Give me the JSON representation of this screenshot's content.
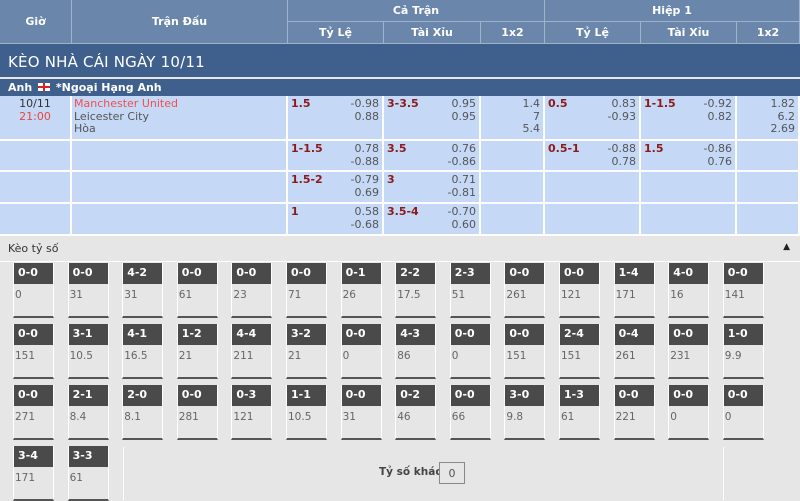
{
  "header": {
    "gio": "Giờ",
    "tran_dau": "Trận Đấu",
    "ca_tran": "Cả Trận",
    "hiep1": "Hiệp 1",
    "ty_le": "Tỷ Lệ",
    "tai_xiu": "Tài Xỉu",
    "x12": "1x2"
  },
  "title": "KÈO NHÀ CÁI NGÀY 10/11",
  "league": {
    "country": "Anh",
    "name": "*Ngoại Hạng Anh"
  },
  "match": {
    "date": "10/11",
    "time": "21:00",
    "home": "Manchester United",
    "away": "Leicester City",
    "draw": "Hòa"
  },
  "rows": [
    {
      "ft_hdp": "1.5",
      "ft_hdp_o": [
        "-0.98",
        "0.88"
      ],
      "ft_ou": "3-3.5",
      "ft_ou_o": [
        "0.95",
        "0.95"
      ],
      "ft_1x2": [
        "1.4",
        "7",
        "5.4"
      ],
      "h1_hdp": "0.5",
      "h1_hdp_o": [
        "0.83",
        "-0.93"
      ],
      "h1_ou": "1-1.5",
      "h1_ou_o": [
        "-0.92",
        "0.82"
      ],
      "h1_1x2": [
        "1.82",
        "6.2",
        "2.69"
      ]
    },
    {
      "ft_hdp": "1-1.5",
      "ft_hdp_o": [
        "0.78",
        "-0.88"
      ],
      "ft_ou": "3.5",
      "ft_ou_o": [
        "0.76",
        "-0.86"
      ],
      "h1_hdp": "0.5-1",
      "h1_hdp_o": [
        "-0.88",
        "0.78"
      ],
      "h1_ou": "1.5",
      "h1_ou_o": [
        "-0.86",
        "0.76"
      ]
    },
    {
      "ft_hdp": "1.5-2",
      "ft_hdp_o": [
        "-0.79",
        "0.69"
      ],
      "ft_ou": "3",
      "ft_ou_o": [
        "0.71",
        "-0.81"
      ]
    },
    {
      "ft_hdp": "1",
      "ft_hdp_o": [
        "0.58",
        "-0.68"
      ],
      "ft_ou": "3.5-4",
      "ft_ou_o": [
        "-0.70",
        "0.60"
      ]
    }
  ],
  "correct_score": {
    "title": "Kèo tỷ số",
    "collapse_icon": "triangle-up-icon",
    "other_label": "Tỷ số khác",
    "other_value": "0",
    "cards": [
      [
        "0-0",
        "0"
      ],
      [
        "0-0",
        "31"
      ],
      [
        "4-2",
        "31"
      ],
      [
        "0-0",
        "61"
      ],
      [
        "0-0",
        "23"
      ],
      [
        "0-0",
        "71"
      ],
      [
        "0-1",
        "26"
      ],
      [
        "2-2",
        "17.5"
      ],
      [
        "2-3",
        "51"
      ],
      [
        "0-0",
        "261"
      ],
      [
        "0-0",
        "121"
      ],
      [
        "1-4",
        "171"
      ],
      [
        "4-0",
        "16"
      ],
      [
        "0-0",
        "141"
      ],
      [
        "0-0",
        "151"
      ],
      [
        "3-1",
        "10.5"
      ],
      [
        "4-1",
        "16.5"
      ],
      [
        "1-2",
        "21"
      ],
      [
        "4-4",
        "211"
      ],
      [
        "3-2",
        "21"
      ],
      [
        "0-0",
        "0"
      ],
      [
        "4-3",
        "86"
      ],
      [
        "0-0",
        "0"
      ],
      [
        "0-0",
        "151"
      ],
      [
        "2-4",
        "151"
      ],
      [
        "0-4",
        "261"
      ],
      [
        "0-0",
        "231"
      ],
      [
        "1-0",
        "9.9"
      ],
      [
        "0-0",
        "271"
      ],
      [
        "2-1",
        "8.4"
      ],
      [
        "2-0",
        "8.1"
      ],
      [
        "0-0",
        "281"
      ],
      [
        "0-3",
        "121"
      ],
      [
        "1-1",
        "10.5"
      ],
      [
        "0-0",
        "31"
      ],
      [
        "0-2",
        "46"
      ],
      [
        "0-0",
        "66"
      ],
      [
        "3-0",
        "9.8"
      ],
      [
        "1-3",
        "61"
      ],
      [
        "0-0",
        "221"
      ],
      [
        "0-0",
        "0"
      ],
      [
        "0-0",
        "0"
      ],
      [
        "3-4",
        "171"
      ],
      [
        "3-3",
        "61"
      ]
    ]
  }
}
